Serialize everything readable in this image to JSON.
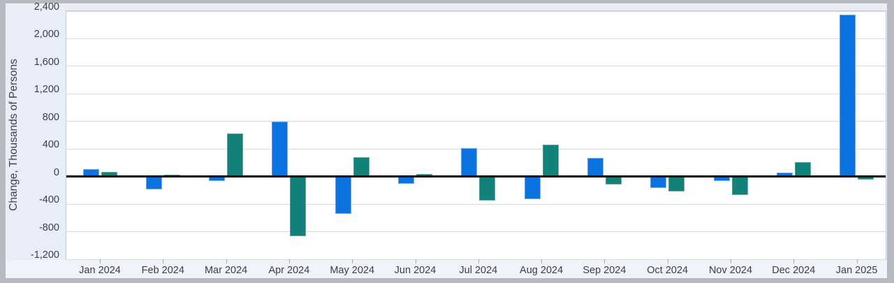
{
  "chart_data": {
    "type": "bar",
    "title": "",
    "xlabel": "",
    "ylabel": "Change, Thousands of Persons",
    "ylim": [
      -1200,
      2400
    ],
    "grid": "horizontal",
    "legend": "none",
    "zero_line": true,
    "categories": [
      "Jan 2024",
      "Feb 2024",
      "Mar 2024",
      "Apr 2024",
      "May 2024",
      "Jun 2024",
      "Jul 2024",
      "Aug 2024",
      "Sep 2024",
      "Oct 2024",
      "Nov 2024",
      "Dec 2024",
      "Jan 2025"
    ],
    "series": [
      {
        "name": "blue-series",
        "color": "#0b73e0",
        "values": [
          110,
          -190,
          -60,
          800,
          -540,
          -100,
          410,
          -330,
          270,
          -170,
          -60,
          60,
          2350
        ]
      },
      {
        "name": "teal-series",
        "color": "#11817a",
        "values": [
          70,
          30,
          630,
          -870,
          280,
          40,
          -350,
          460,
          -120,
          -220,
          -270,
          210,
          -40
        ]
      }
    ],
    "yticks": [
      {
        "value": 2400,
        "label": "2,400"
      },
      {
        "value": 2000,
        "label": "2,000"
      },
      {
        "value": 1600,
        "label": "1,600"
      },
      {
        "value": 1200,
        "label": "1,200"
      },
      {
        "value": 800,
        "label": "800"
      },
      {
        "value": 400,
        "label": "400"
      },
      {
        "value": 0,
        "label": "0"
      },
      {
        "value": -400,
        "label": "-400"
      },
      {
        "value": -800,
        "label": "-800"
      },
      {
        "value": -1200,
        "label": "-1,200"
      }
    ]
  }
}
